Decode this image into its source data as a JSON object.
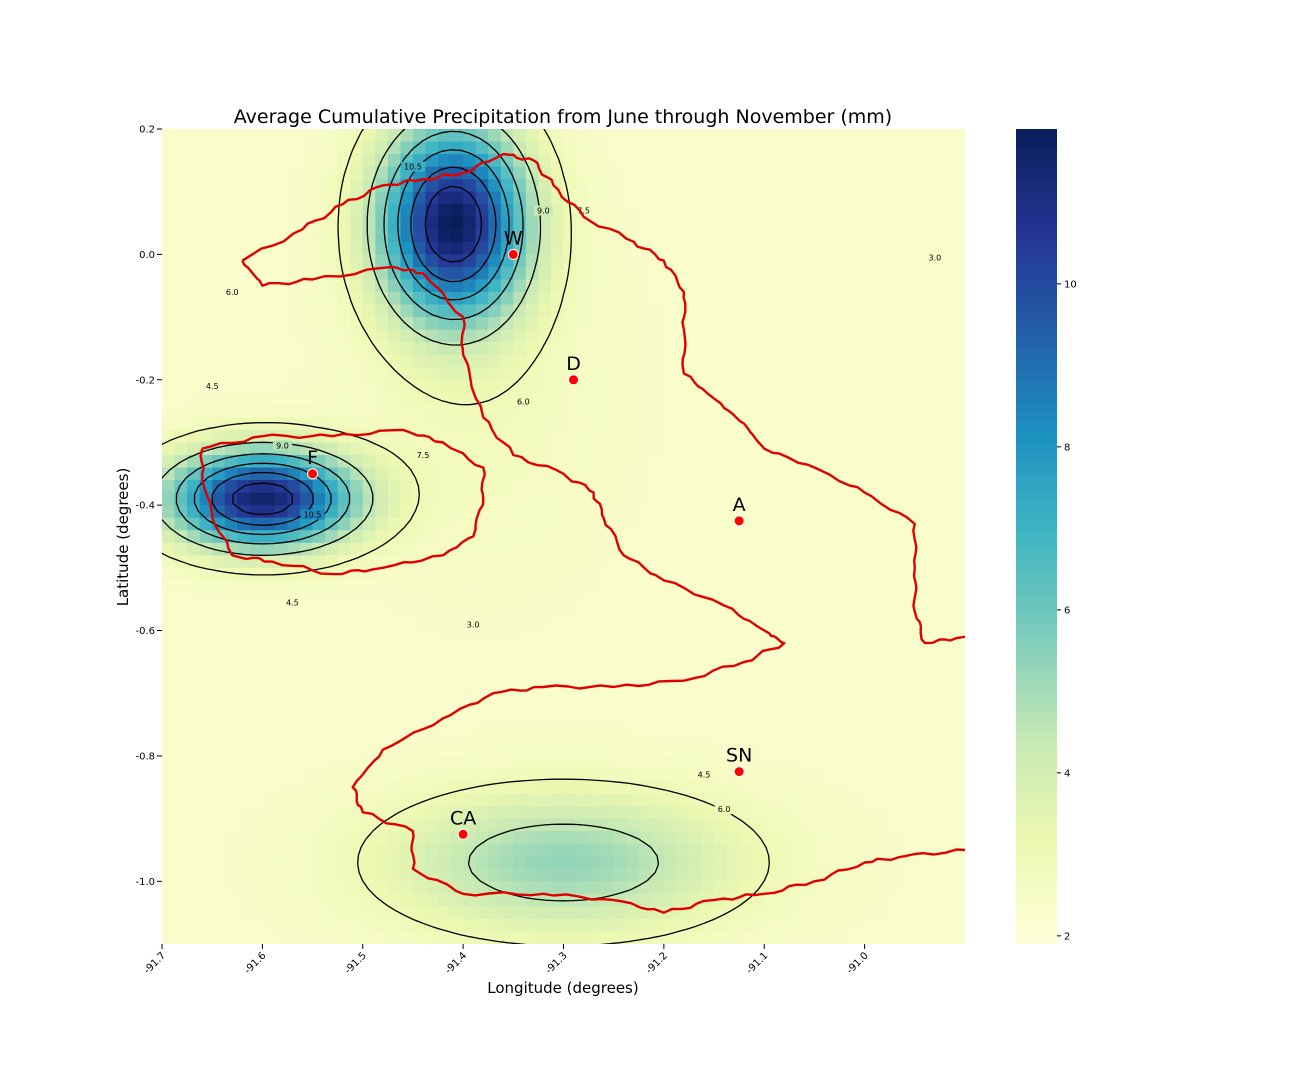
{
  "chart_data": {
    "type": "heatmap",
    "title": "Average Cumulative Precipitation from June through November (mm)",
    "xlabel": "Longitude (degrees)",
    "ylabel": "Latitude (degrees)",
    "xlim": [
      -91.7,
      -90.9
    ],
    "ylim": [
      -1.1,
      0.2
    ],
    "xticks": [
      -91.7,
      -91.6,
      -91.5,
      -91.4,
      -91.3,
      -91.2,
      -91.1,
      -91.0
    ],
    "xtick_labels": [
      "-91.7",
      "-91.6",
      "-91.5",
      "-91.4",
      "-91.3",
      "-91.2",
      "-91.1",
      "-91.0"
    ],
    "yticks": [
      0.2,
      0.0,
      -0.2,
      -0.4,
      -0.6,
      -0.8,
      -1.0
    ],
    "ytick_labels": [
      "0.2",
      "0.0",
      "-0.2",
      "-0.4",
      "-0.6",
      "-0.8",
      "-1.0"
    ],
    "colorbar": {
      "range": [
        1.9,
        11.9
      ],
      "ticks": [
        2,
        4,
        6,
        8,
        10
      ],
      "tick_labels": [
        "2",
        "4",
        "6",
        "8",
        "10"
      ],
      "colormap": "YlGnBu",
      "colors": [
        "#ffffd9",
        "#edf8b1",
        "#c7e9b4",
        "#7fcdbb",
        "#41b6c4",
        "#1d91c0",
        "#225ea8",
        "#253494",
        "#081d58"
      ]
    },
    "precip_centers": [
      {
        "lon": -91.41,
        "lat": 0.05,
        "peak": 11.7,
        "sx": 0.07,
        "sy": 0.15
      },
      {
        "lon": -91.6,
        "lat": -0.39,
        "peak": 11.5,
        "sx": 0.09,
        "sy": 0.075
      },
      {
        "lon": -91.3,
        "lat": -0.97,
        "peak": 5.3,
        "sx": 0.17,
        "sy": 0.11
      },
      {
        "lon": -91.38,
        "lat": -0.2,
        "peak": 2.8,
        "sx": 0.12,
        "sy": 0.28
      }
    ],
    "background_precip": 2.3,
    "contour_levels": [
      "3.0",
      "4.5",
      "6.0",
      "7.5",
      "9.0",
      "10.5"
    ],
    "contour_labels": [
      {
        "text": "10.5",
        "lon": -91.45,
        "lat": 0.14
      },
      {
        "text": "9.0",
        "lon": -91.32,
        "lat": 0.07
      },
      {
        "text": "7.5",
        "lon": -91.28,
        "lat": 0.07
      },
      {
        "text": "3.0",
        "lon": -90.93,
        "lat": -0.005
      },
      {
        "text": "6.0",
        "lon": -91.63,
        "lat": -0.06
      },
      {
        "text": "4.5",
        "lon": -91.65,
        "lat": -0.21
      },
      {
        "text": "6.0",
        "lon": -91.34,
        "lat": -0.235
      },
      {
        "text": "9.0",
        "lon": -91.58,
        "lat": -0.305
      },
      {
        "text": "7.5",
        "lon": -91.44,
        "lat": -0.32
      },
      {
        "text": "10.5",
        "lon": -91.55,
        "lat": -0.415
      },
      {
        "text": "4.5",
        "lon": -91.57,
        "lat": -0.555
      },
      {
        "text": "3.0",
        "lon": -91.39,
        "lat": -0.59
      },
      {
        "text": "4.5",
        "lon": -91.16,
        "lat": -0.83
      },
      {
        "text": "6.0",
        "lon": -91.14,
        "lat": -0.885
      }
    ],
    "stations": [
      {
        "label": "W",
        "lon": -91.35,
        "lat": 0.0
      },
      {
        "label": "D",
        "lon": -91.29,
        "lat": -0.2
      },
      {
        "label": "F",
        "lon": -91.55,
        "lat": -0.35
      },
      {
        "label": "A",
        "lon": -91.125,
        "lat": -0.425
      },
      {
        "label": "SN",
        "lon": -91.125,
        "lat": -0.825
      },
      {
        "label": "CA",
        "lon": -91.4,
        "lat": -0.925
      }
    ],
    "station_color": "#ff0000",
    "island_outline_color": "#e00000",
    "grid": false
  }
}
